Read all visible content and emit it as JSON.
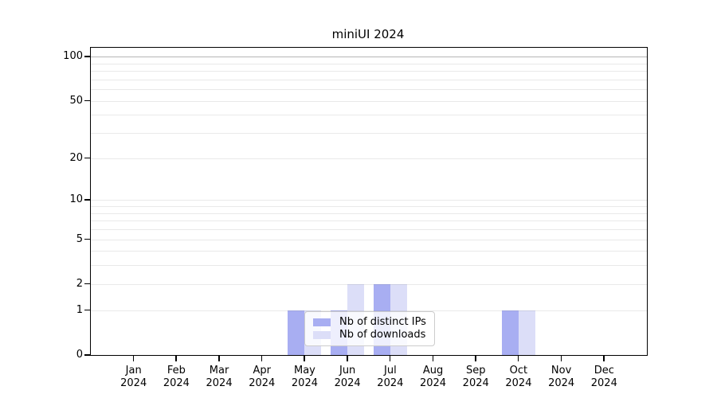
{
  "chart_data": {
    "type": "bar",
    "title": "miniUI 2024",
    "categories": [
      "Jan",
      "Feb",
      "Mar",
      "Apr",
      "May",
      "Jun",
      "Jul",
      "Aug",
      "Sep",
      "Oct",
      "Nov",
      "Dec"
    ],
    "year": "2024",
    "series": [
      {
        "name": "Nb of distinct IPs",
        "color": "#a8aef2",
        "values": [
          0,
          0,
          0,
          0,
          1,
          1,
          2,
          0,
          0,
          1,
          0,
          0
        ]
      },
      {
        "name": "Nb of downloads",
        "color": "#dcdef8",
        "values": [
          0,
          0,
          0,
          0,
          1,
          2,
          2,
          0,
          0,
          1,
          0,
          0
        ]
      }
    ],
    "xlabel": "",
    "ylabel": "",
    "y_scale": "log1p",
    "ylim": [
      0,
      115
    ],
    "y_ticks": [
      100,
      50,
      20,
      10,
      5,
      2,
      1,
      0
    ],
    "y_gridlines": [
      1,
      2,
      3,
      4,
      5,
      6,
      7,
      8,
      9,
      10,
      20,
      30,
      40,
      50,
      60,
      70,
      80,
      90,
      100
    ],
    "y_gridline_strong": 100,
    "grid": true,
    "legend_position": "bottom-center"
  }
}
